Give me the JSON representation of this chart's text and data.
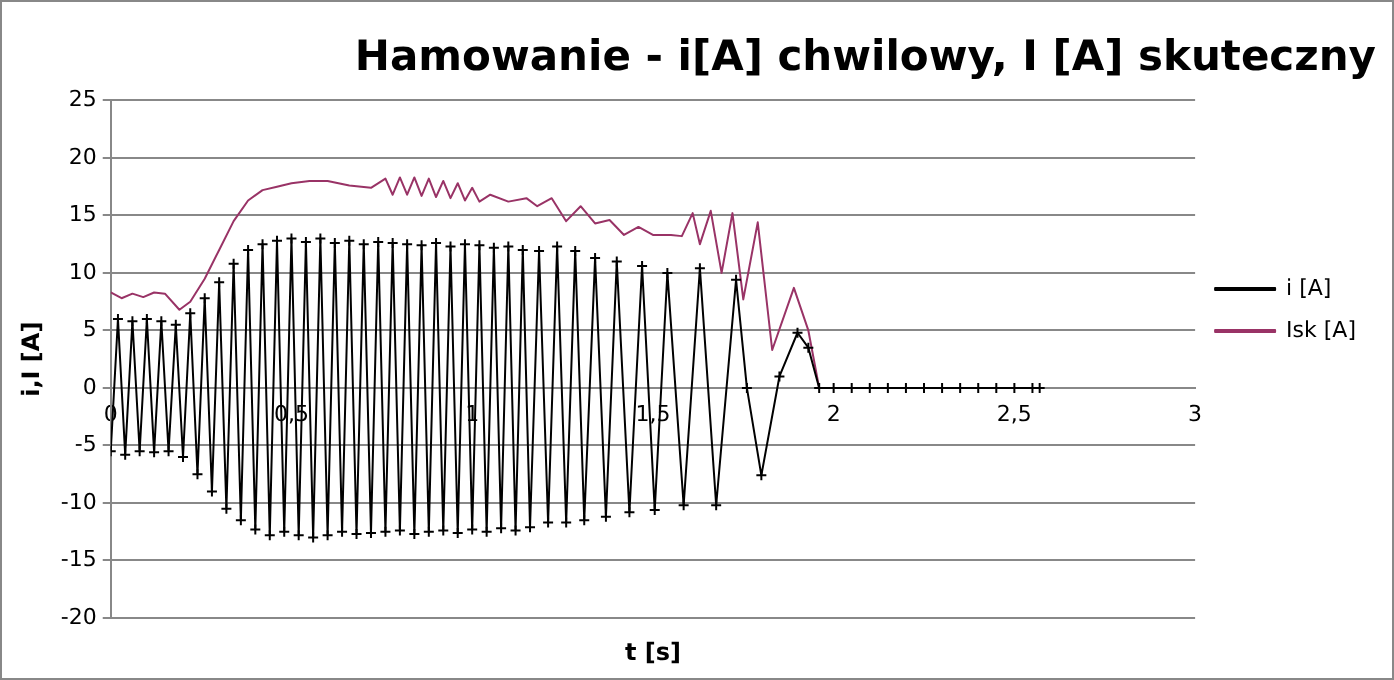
{
  "chart_data": {
    "type": "line",
    "title": "Hamowanie - i[A] chwilowy, I [A] skuteczny",
    "xlabel": "t [s]",
    "ylabel": "i,I [A]",
    "xlim": [
      0,
      3
    ],
    "xticks": [
      0,
      {
        "value": 0.5,
        "label": "0,5"
      },
      1,
      {
        "value": 1.5,
        "label": "1,5"
      },
      2,
      {
        "value": 2.5,
        "label": "2,5"
      },
      3
    ],
    "ylim": [
      -20,
      25
    ],
    "yticks": [
      -20,
      -15,
      -10,
      -5,
      0,
      5,
      10,
      15,
      20,
      25
    ],
    "grid": "y",
    "legend": "right",
    "series": [
      {
        "name": "i [A]",
        "color": "#000000",
        "marker": "cross",
        "x": [
          0,
          0.02,
          0.04,
          0.06,
          0.08,
          0.1,
          0.12,
          0.14,
          0.16,
          0.18,
          0.2,
          0.22,
          0.24,
          0.26,
          0.28,
          0.3,
          0.32,
          0.34,
          0.36,
          0.38,
          0.4,
          0.42,
          0.44,
          0.46,
          0.48,
          0.5,
          0.52,
          0.54,
          0.56,
          0.58,
          0.6,
          0.62,
          0.64,
          0.66,
          0.68,
          0.7,
          0.72,
          0.74,
          0.76,
          0.78,
          0.8,
          0.82,
          0.84,
          0.86,
          0.88,
          0.9,
          0.92,
          0.94,
          0.96,
          0.98,
          1,
          1.02,
          1.04,
          1.06,
          1.08,
          1.1,
          1.12,
          1.14,
          1.16,
          1.185,
          1.21,
          1.235,
          1.26,
          1.285,
          1.31,
          1.34,
          1.37,
          1.4,
          1.435,
          1.47,
          1.505,
          1.54,
          1.585,
          1.63,
          1.675,
          1.73,
          1.76,
          1.8,
          1.85,
          1.9,
          1.93,
          1.96,
          2,
          2.05,
          2.1,
          2.15,
          2.2,
          2.25,
          2.3,
          2.35,
          2.4,
          2.45,
          2.5,
          2.55,
          2.57
        ],
        "values": [
          -5.5,
          6,
          -5.8,
          5.8,
          -5.5,
          6,
          -5.6,
          5.8,
          -5.5,
          5.5,
          -6,
          6.5,
          -7.5,
          7.8,
          -9,
          9.2,
          -10.5,
          10.8,
          -11.5,
          12,
          -12.3,
          12.5,
          -12.8,
          12.8,
          -12.5,
          13,
          -12.8,
          12.7,
          -13,
          13,
          -12.8,
          12.6,
          -12.5,
          12.8,
          -12.7,
          12.5,
          -12.6,
          12.7,
          -12.5,
          12.6,
          -12.4,
          12.5,
          -12.7,
          12.4,
          -12.5,
          12.6,
          -12.4,
          12.3,
          -12.6,
          12.5,
          -12.3,
          12.4,
          -12.5,
          12.2,
          -12.2,
          12.3,
          -12.4,
          12,
          -12.1,
          11.9,
          -11.7,
          12.3,
          -11.7,
          11.9,
          -11.5,
          11.3,
          -11.2,
          11,
          -10.8,
          10.6,
          -10.6,
          10,
          -10.2,
          10.4,
          -10.2,
          9.4,
          0,
          -7.6,
          1,
          4.8,
          3.5,
          0,
          0,
          0,
          0,
          0,
          0,
          0,
          0,
          0,
          0,
          0,
          0,
          0,
          0
        ]
      },
      {
        "name": "Isk [A]",
        "color": "#993366",
        "marker": "none",
        "x": [
          0,
          0.03,
          0.06,
          0.09,
          0.12,
          0.15,
          0.19,
          0.22,
          0.26,
          0.3,
          0.34,
          0.38,
          0.42,
          0.46,
          0.5,
          0.55,
          0.6,
          0.66,
          0.72,
          0.76,
          0.78,
          0.8,
          0.82,
          0.84,
          0.86,
          0.88,
          0.9,
          0.92,
          0.94,
          0.96,
          0.98,
          1,
          1.02,
          1.05,
          1.1,
          1.15,
          1.18,
          1.22,
          1.26,
          1.3,
          1.34,
          1.38,
          1.42,
          1.46,
          1.5,
          1.55,
          1.58,
          1.61,
          1.63,
          1.66,
          1.69,
          1.72,
          1.75,
          1.79,
          1.83,
          1.89,
          1.93,
          1.96
        ],
        "values": [
          8.3,
          7.8,
          8.2,
          7.9,
          8.3,
          8.2,
          6.8,
          7.5,
          9.5,
          12,
          14.5,
          16.3,
          17.2,
          17.5,
          17.8,
          18,
          18,
          17.6,
          17.4,
          18.2,
          16.8,
          18.3,
          16.8,
          18.3,
          16.7,
          18.2,
          16.6,
          18,
          16.5,
          17.8,
          16.3,
          17.4,
          16.2,
          16.8,
          16.2,
          16.5,
          15.8,
          16.5,
          14.5,
          15.8,
          14.3,
          14.6,
          13.3,
          14,
          13.3,
          13.3,
          13.2,
          15.2,
          12.5,
          15.4,
          10,
          15.2,
          7.7,
          14.4,
          3.3,
          8.7,
          5,
          0
        ]
      }
    ]
  }
}
